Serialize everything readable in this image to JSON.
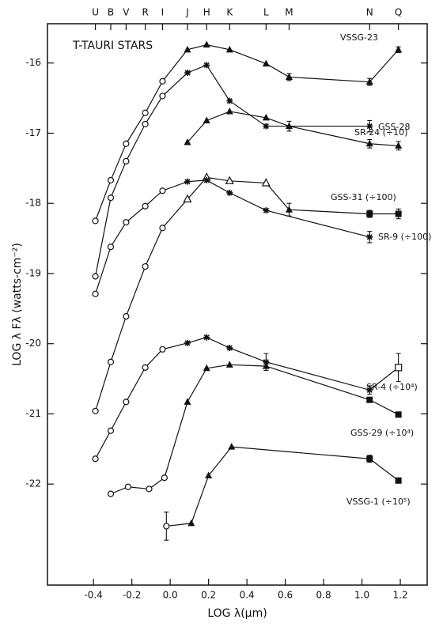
{
  "chart_data": {
    "type": "line",
    "annotation": "T-TAURI STARS",
    "x_label": "LOG λ(μm)",
    "y_label": "LOG λ Fλ (watts-cm⁻²)",
    "xlim": [
      -0.64,
      1.34
    ],
    "ylim": [
      -23.44,
      -15.44
    ],
    "xticks": [
      {
        "value": -0.4,
        "label": "-0.4"
      },
      -0.2,
      {
        "value": 0,
        "label": "0.0"
      },
      0.2,
      0.4,
      0.6,
      0.8,
      {
        "value": 1,
        "label": "1.0"
      },
      1.2
    ],
    "yticks": [
      -16,
      -17,
      -18,
      -19,
      -20,
      -21,
      -22
    ],
    "top_ticks": [
      {
        "value": -0.39,
        "label": "U"
      },
      {
        "value": -0.31,
        "label": "B"
      },
      {
        "value": -0.23,
        "label": "V"
      },
      {
        "value": -0.13,
        "label": "R"
      },
      {
        "value": -0.04,
        "label": "I"
      },
      {
        "value": 0.09,
        "label": "J"
      },
      {
        "value": 0.19,
        "label": "H"
      },
      {
        "value": 0.31,
        "label": "K"
      },
      {
        "value": 0.5,
        "label": "L"
      },
      {
        "value": 0.62,
        "label": "M"
      },
      {
        "value": 1.04,
        "label": "N"
      },
      {
        "value": 1.19,
        "label": "Q"
      }
    ],
    "color": "#111111",
    "series": [
      {
        "name": "VSSG-23",
        "x": [
          -0.39,
          -0.31,
          -0.23,
          -0.13,
          -0.04,
          0.09,
          0.19,
          0.31,
          0.5,
          0.62,
          1.04,
          1.19
        ],
        "values": [
          -18.25,
          -17.67,
          -17.15,
          -16.71,
          -16.26,
          -15.81,
          -15.74,
          -15.81,
          -16.01,
          -16.2,
          -16.27,
          -15.81
        ],
        "markers": [
          "open-circle",
          "open-circle",
          "open-circle",
          "open-circle",
          "open-circle",
          "triangle",
          "triangle",
          "triangle",
          "triangle",
          "triangle",
          "triangle",
          "triangle"
        ],
        "errors": [
          null,
          null,
          null,
          null,
          null,
          null,
          null,
          null,
          null,
          0.05,
          0.05,
          0.04
        ]
      },
      {
        "name": "GSS-28",
        "x": [
          -0.39,
          -0.31,
          -0.23,
          -0.13,
          -0.04,
          0.09,
          0.19,
          0.31,
          0.5,
          1.04
        ],
        "values": [
          -19.04,
          -17.92,
          -17.4,
          -16.87,
          -16.47,
          -16.14,
          -16.03,
          -16.54,
          -16.9,
          -16.9
        ],
        "markers": [
          "open-circle",
          "open-circle",
          "open-circle",
          "open-circle",
          "open-circle",
          "asterisk",
          "asterisk",
          "asterisk",
          "asterisk",
          "asterisk"
        ],
        "errors": [
          null,
          null,
          null,
          null,
          null,
          null,
          null,
          null,
          null,
          0.08
        ]
      },
      {
        "name": "SR-24 (÷10)",
        "x": [
          0.09,
          0.19,
          0.31,
          0.5,
          0.62,
          1.04,
          1.19
        ],
        "values": [
          -17.13,
          -16.82,
          -16.69,
          -16.78,
          -16.9,
          -17.15,
          -17.18
        ],
        "markers": [
          "triangle",
          "triangle",
          "triangle",
          "triangle",
          "triangle",
          "triangle",
          "triangle"
        ],
        "errors": [
          null,
          null,
          null,
          null,
          0.07,
          0.06,
          0.06
        ]
      },
      {
        "name": "GSS-31 (÷100)",
        "x": [
          -0.39,
          -0.31,
          -0.23,
          -0.13,
          -0.04,
          0.09,
          0.19,
          0.31,
          0.5,
          0.62,
          1.04,
          1.19
        ],
        "values": [
          -20.96,
          -20.26,
          -19.61,
          -18.9,
          -18.35,
          -17.94,
          -17.63,
          -17.68,
          -17.71,
          -18.09,
          -18.15,
          -18.15
        ],
        "markers": [
          "open-circle",
          "open-circle",
          "open-circle",
          "open-circle",
          "open-circle",
          "open-triangle",
          "open-triangle",
          "open-triangle",
          "open-triangle",
          "triangle",
          "square",
          "square"
        ],
        "errors": [
          null,
          null,
          null,
          null,
          null,
          null,
          null,
          null,
          null,
          0.09,
          0.05,
          0.07
        ]
      },
      {
        "name": "SR-9 (÷100)",
        "x": [
          -0.39,
          -0.31,
          -0.23,
          -0.13,
          -0.04,
          0.09,
          0.19,
          0.31,
          0.5,
          1.04
        ],
        "values": [
          -19.29,
          -18.62,
          -18.27,
          -18.04,
          -17.82,
          -17.69,
          -17.67,
          -17.85,
          -18.1,
          -18.48
        ],
        "markers": [
          "open-circle",
          "open-circle",
          "open-circle",
          "open-circle",
          "open-circle",
          "asterisk",
          "asterisk",
          "asterisk",
          "asterisk",
          "asterisk"
        ],
        "errors": [
          null,
          null,
          null,
          null,
          null,
          null,
          null,
          null,
          null,
          0.08
        ]
      },
      {
        "name": "SR-4 (÷10⁴)",
        "x": [
          -0.39,
          -0.31,
          -0.23,
          -0.13,
          -0.04,
          0.09,
          0.19,
          0.31,
          0.5,
          1.04,
          1.19
        ],
        "values": [
          -21.64,
          -21.24,
          -20.83,
          -20.34,
          -20.08,
          -19.99,
          -19.91,
          -20.06,
          -20.26,
          -20.66,
          -20.34
        ],
        "markers": [
          "open-circle",
          "open-circle",
          "open-circle",
          "open-circle",
          "open-circle",
          "asterisk",
          "asterisk",
          "asterisk",
          "asterisk",
          "asterisk",
          "open-square"
        ],
        "errors": [
          null,
          null,
          null,
          null,
          null,
          null,
          null,
          null,
          0.12,
          0.06,
          0.2
        ]
      },
      {
        "name": "GSS-29 (÷10⁴)",
        "x": [
          -0.31,
          -0.22,
          -0.11,
          -0.03,
          0.09,
          0.19,
          0.31,
          0.5,
          1.04,
          1.19
        ],
        "values": [
          -22.14,
          -22.04,
          -22.07,
          -21.91,
          -20.83,
          -20.35,
          -20.3,
          -20.32,
          -20.8,
          -21.01
        ],
        "markers": [
          "open-circle",
          "open-circle",
          "open-circle",
          "open-circle",
          "triangle",
          "triangle",
          "triangle",
          "triangle",
          "square",
          "square"
        ],
        "errors": [
          null,
          null,
          null,
          null,
          null,
          null,
          null,
          null,
          null,
          null
        ]
      },
      {
        "name": "VSSG-1 (÷10⁵)",
        "x": [
          -0.02,
          0.11,
          0.2,
          0.32,
          1.04,
          1.19
        ],
        "values": [
          -22.6,
          -22.56,
          -21.88,
          -21.47,
          -21.64,
          -21.95
        ],
        "markers": [
          "open-circle",
          "triangle",
          "triangle",
          "triangle",
          "square",
          "square"
        ],
        "errors": [
          0.2,
          null,
          null,
          null,
          0.05,
          null
        ]
      }
    ]
  }
}
